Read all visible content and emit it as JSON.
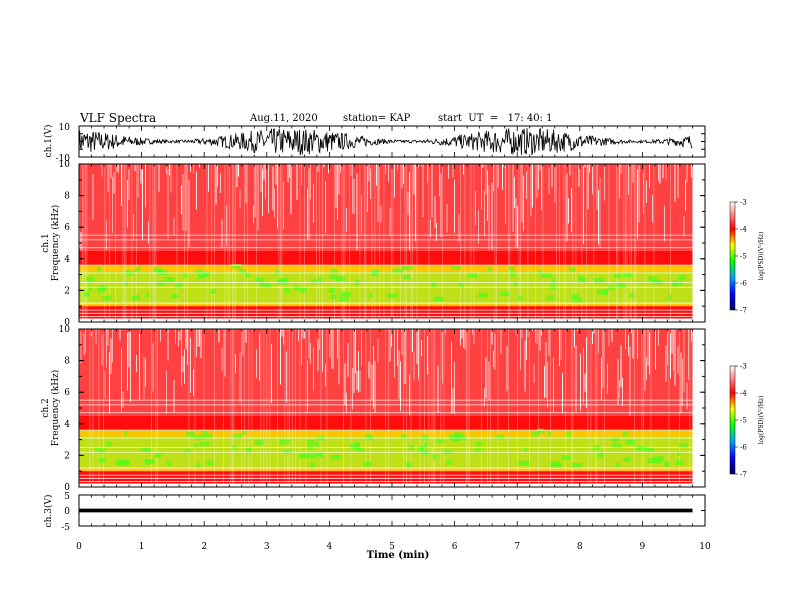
{
  "header": {
    "title": "VLF Spectra",
    "date": "Aug.11, 2020",
    "station": "station= KAP",
    "start": "start  UT  =   17: 40: 1"
  },
  "colors": {
    "waveform": "#000000",
    "spectrogram_background": "#ffffff",
    "colormap": [
      "#000060",
      "#0000ff",
      "#00a0ff",
      "#00ff00",
      "#ffff00",
      "#ff0000",
      "#ffffff"
    ]
  },
  "chart_data": [
    {
      "type": "line",
      "name": "ch1-waveform",
      "ylabel": "ch.1(V)",
      "ylim": [
        -10,
        10
      ],
      "y_ticks": [
        "10",
        "-10"
      ],
      "xlim": [
        0,
        10
      ]
    },
    {
      "type": "heatmap",
      "name": "ch1-spectrogram",
      "ylabel_channel": "ch.1",
      "ylabel": "Frequency  (kHz)",
      "ylim": [
        0,
        10
      ],
      "y_ticks": [
        "0",
        "2",
        "4",
        "6",
        "8",
        "10"
      ],
      "data_extent_min": 9.8,
      "color_range": [
        -7,
        -3
      ],
      "colorbar_ticks": [
        "-3",
        "-4",
        "-5",
        "-6",
        "-7"
      ],
      "colorbar_label": "log(PSD)(V²/Hz)"
    },
    {
      "type": "heatmap",
      "name": "ch2-spectrogram",
      "ylabel_channel": "ch.2",
      "ylabel": "Frequency  (kHz)",
      "ylim": [
        0,
        10
      ],
      "y_ticks": [
        "0",
        "2",
        "4",
        "6",
        "8",
        "10"
      ],
      "data_extent_min": 9.8,
      "color_range": [
        -7,
        -3
      ],
      "colorbar_ticks": [
        "-3",
        "-4",
        "-5",
        "-6",
        "-7"
      ],
      "colorbar_label": "log(PSD)(V²/Hz)"
    },
    {
      "type": "line",
      "name": "ch3-waveform",
      "ylabel": "ch.3(V)",
      "ylim": [
        -5,
        5
      ],
      "y_ticks": [
        "5",
        "0",
        "-5"
      ],
      "xlim": [
        0,
        10
      ],
      "x_ticks": [
        "0",
        "1",
        "2",
        "3",
        "4",
        "5",
        "6",
        "7",
        "8",
        "9",
        "10"
      ],
      "xlabel": "Time  (min)"
    }
  ]
}
